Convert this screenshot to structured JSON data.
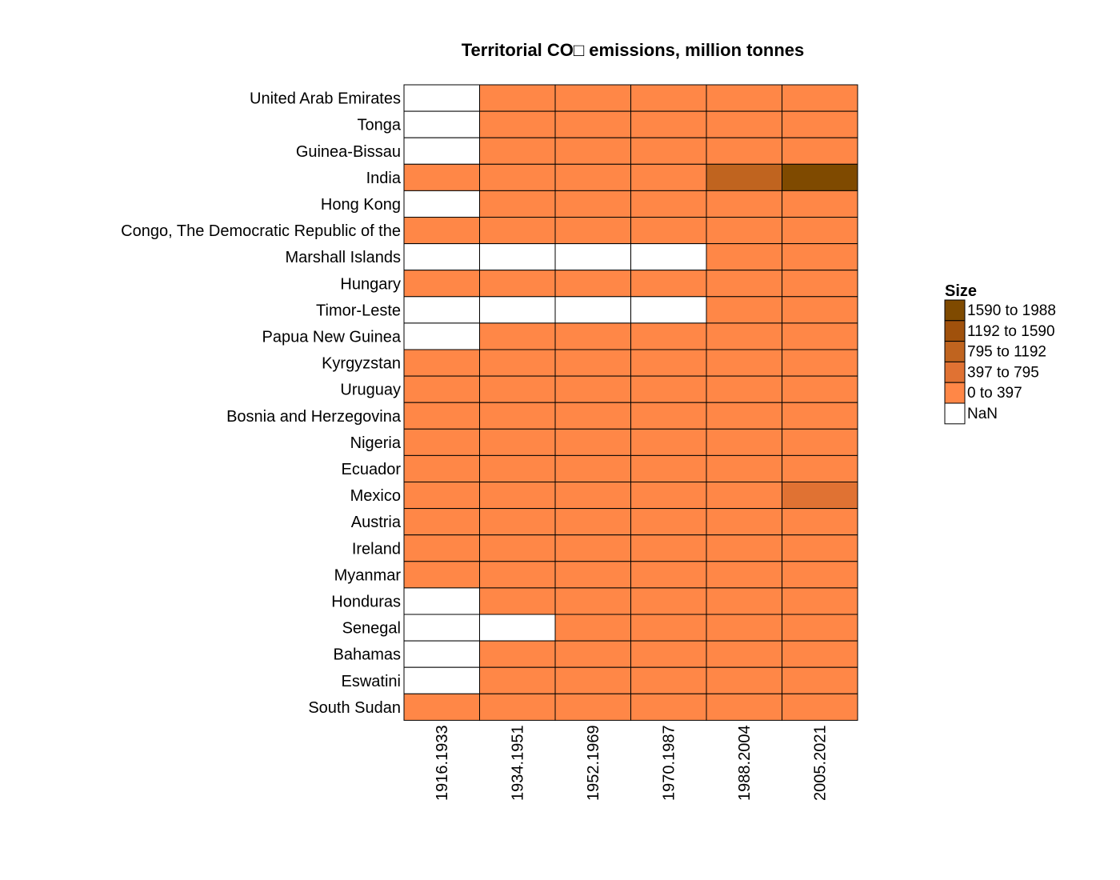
{
  "chart_data": {
    "type": "heatmap",
    "title": "Territorial CO□ emissions, million tonnes",
    "columns": [
      "1916.1933",
      "1934.1951",
      "1952.1969",
      "1970.1987",
      "1988.2004",
      "2005.2021"
    ],
    "rows": [
      "United Arab Emirates",
      "Tonga",
      "Guinea-Bissau",
      "India",
      "Hong Kong",
      "Congo, The Democratic Republic of the",
      "Marshall Islands",
      "Hungary",
      "Timor-Leste",
      "Papua New Guinea",
      "Kyrgyzstan",
      "Uruguay",
      "Bosnia and Herzegovina",
      "Nigeria",
      "Ecuador",
      "Mexico",
      "Austria",
      "Ireland",
      "Myanmar",
      "Honduras",
      "Senegal",
      "Bahamas",
      "Eswatini",
      "South Sudan"
    ],
    "bins": [
      [
        null,
        0,
        0,
        0,
        0,
        0
      ],
      [
        null,
        0,
        0,
        0,
        0,
        0
      ],
      [
        null,
        0,
        0,
        0,
        0,
        0
      ],
      [
        0,
        0,
        0,
        0,
        2,
        4
      ],
      [
        null,
        0,
        0,
        0,
        0,
        0
      ],
      [
        0,
        0,
        0,
        0,
        0,
        0
      ],
      [
        null,
        null,
        null,
        null,
        0,
        0
      ],
      [
        0,
        0,
        0,
        0,
        0,
        0
      ],
      [
        null,
        null,
        null,
        null,
        0,
        0
      ],
      [
        null,
        0,
        0,
        0,
        0,
        0
      ],
      [
        0,
        0,
        0,
        0,
        0,
        0
      ],
      [
        0,
        0,
        0,
        0,
        0,
        0
      ],
      [
        0,
        0,
        0,
        0,
        0,
        0
      ],
      [
        0,
        0,
        0,
        0,
        0,
        0
      ],
      [
        0,
        0,
        0,
        0,
        0,
        0
      ],
      [
        0,
        0,
        0,
        0,
        0,
        1
      ],
      [
        0,
        0,
        0,
        0,
        0,
        0
      ],
      [
        0,
        0,
        0,
        0,
        0,
        0
      ],
      [
        0,
        0,
        0,
        0,
        0,
        0
      ],
      [
        null,
        0,
        0,
        0,
        0,
        0
      ],
      [
        null,
        null,
        0,
        0,
        0,
        0
      ],
      [
        null,
        0,
        0,
        0,
        0,
        0
      ],
      [
        null,
        0,
        0,
        0,
        0,
        0
      ],
      [
        0,
        0,
        0,
        0,
        0,
        0
      ]
    ],
    "legend": {
      "title": "Size",
      "entries": [
        {
          "label": "1590  to  1988",
          "color": "#7f4a00"
        },
        {
          "label": "1192  to  1590",
          "color": "#a0510c"
        },
        {
          "label": "795  to  1192",
          "color": "#c0641f"
        },
        {
          "label": "397  to  795",
          "color": "#e07233"
        },
        {
          "label": "0  to  397",
          "color": "#ff8747"
        },
        {
          "label": "NaN",
          "color": "#ffffff"
        }
      ]
    },
    "bin_colors": [
      "#ff8747",
      "#e07233",
      "#c0641f",
      "#a0510c",
      "#7f4a00"
    ],
    "nan_color": "#ffffff"
  }
}
